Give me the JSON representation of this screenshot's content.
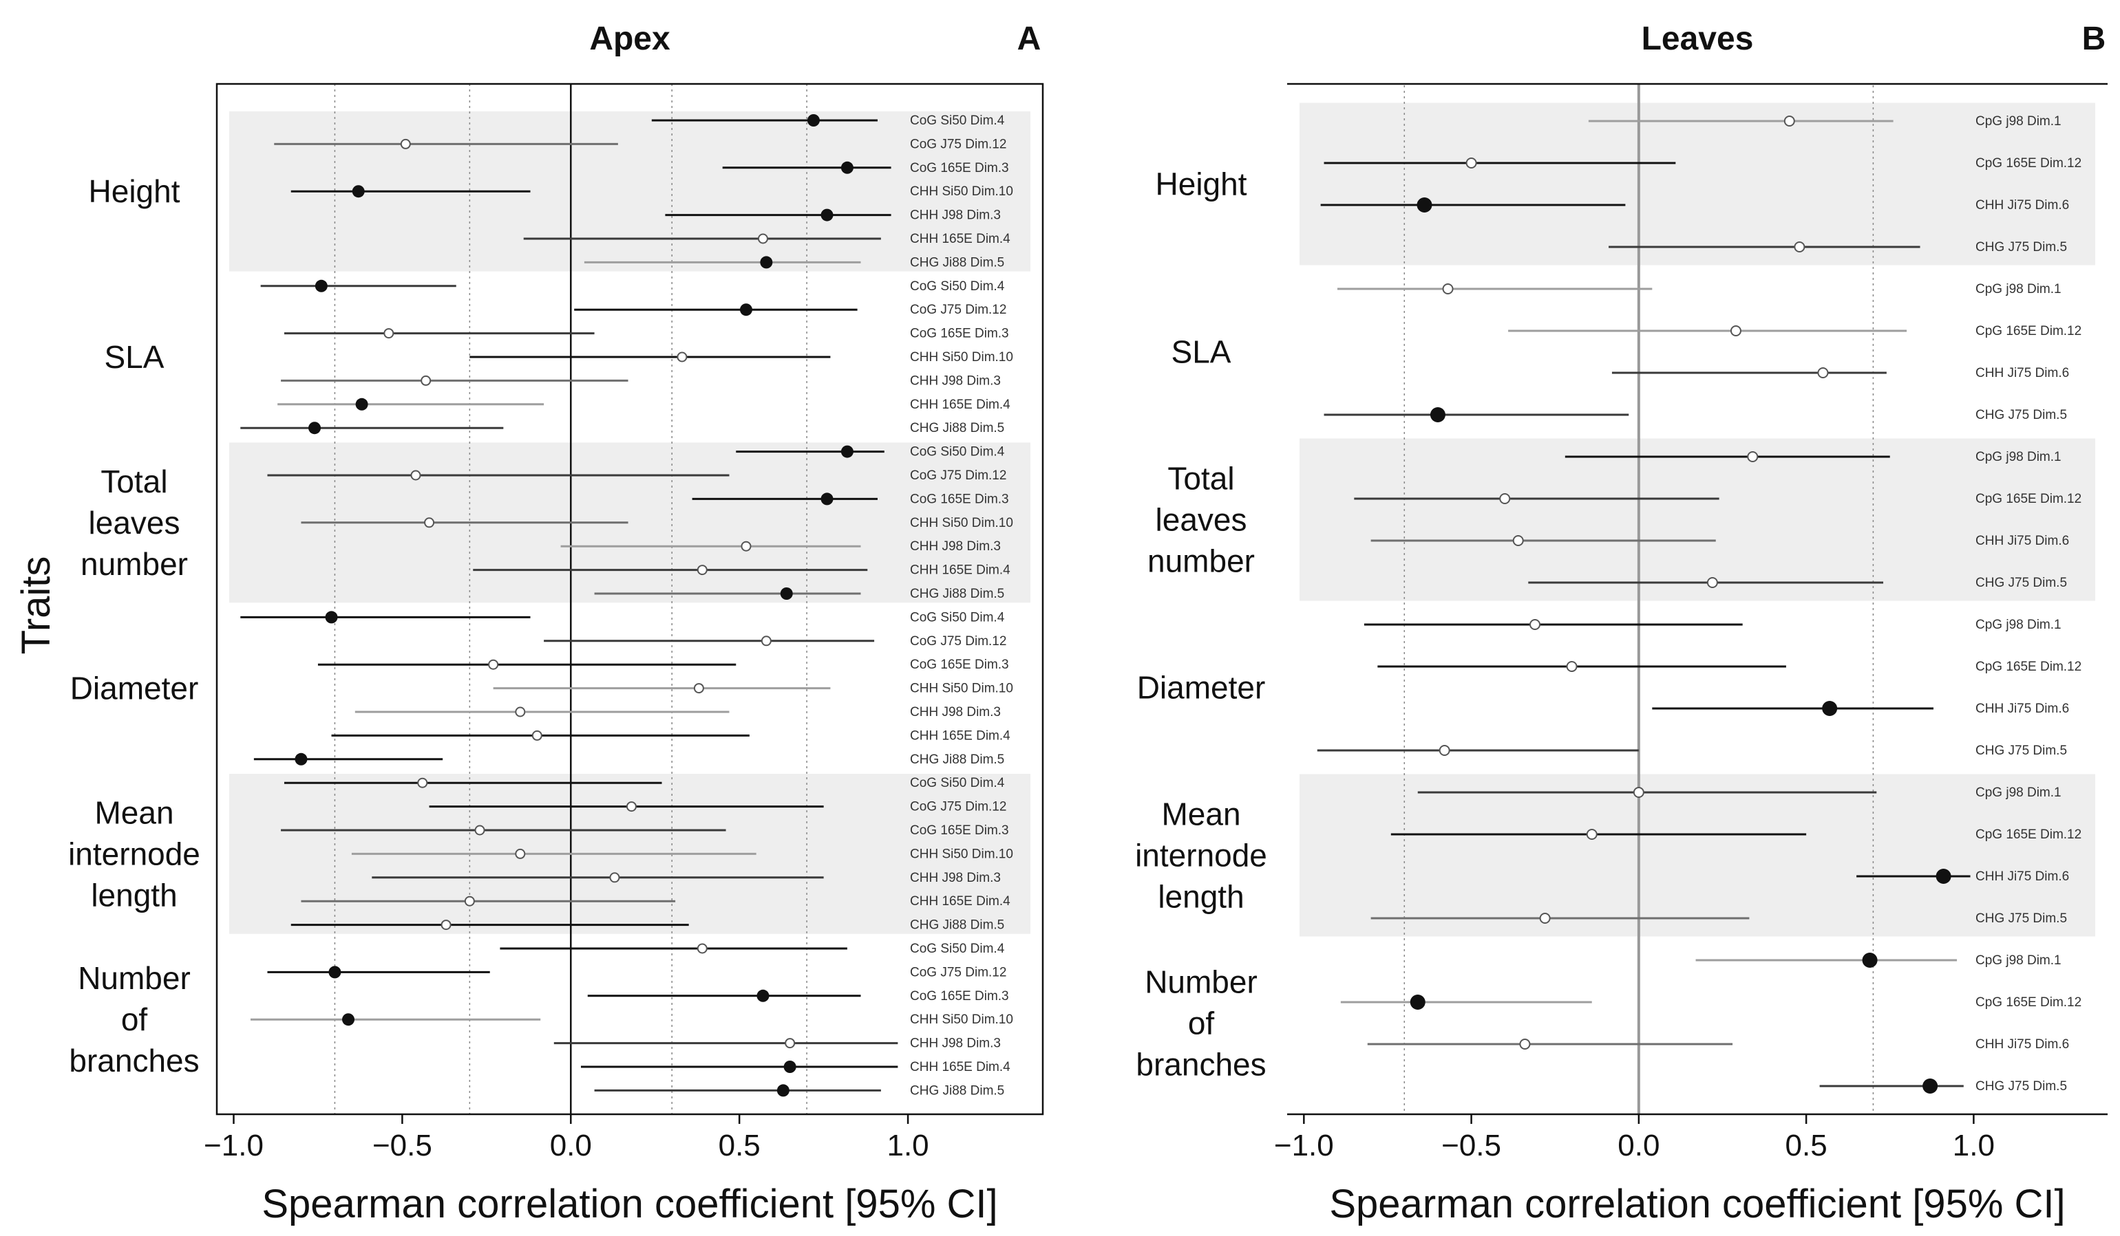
{
  "figure": {
    "y_axis_label": "Traits",
    "colors": {
      "band": "#eeeeee",
      "black": "#111111",
      "dark": "#3a3a3a",
      "mid": "#6f6f6f",
      "light": "#9e9e9e",
      "open_fill": "#ffffff"
    }
  },
  "chart_data": [
    {
      "type": "forest",
      "title": "Apex",
      "panel_letter": "A",
      "xlabel": "Spearman correlation coefficient [95% CI]",
      "xlim": [
        -1.05,
        1.4
      ],
      "xticks": [
        -1.0,
        -0.5,
        0.0,
        0.5,
        1.0
      ],
      "xtick_labels": [
        "−1.0",
        "−0.5",
        "0.0",
        "0.5",
        "1.0"
      ],
      "reference_lines": [
        -0.7,
        -0.3,
        0.3,
        0.7
      ],
      "groups": [
        {
          "name": "Height",
          "label_lines": [
            "Height"
          ],
          "shaded": true,
          "rows": [
            {
              "label": "CoG Si50 Dim.4",
              "est": 0.72,
              "lo": 0.24,
              "hi": 0.91,
              "sig": true,
              "shade": "black"
            },
            {
              "label": "CoG J75 Dim.12",
              "est": -0.49,
              "lo": -0.88,
              "hi": 0.14,
              "sig": false,
              "shade": "mid"
            },
            {
              "label": "CoG 165E Dim.3",
              "est": 0.82,
              "lo": 0.45,
              "hi": 0.95,
              "sig": true,
              "shade": "black"
            },
            {
              "label": "CHH Si50 Dim.10",
              "est": -0.63,
              "lo": -0.83,
              "hi": -0.12,
              "sig": true,
              "shade": "black"
            },
            {
              "label": "CHH J98 Dim.3",
              "est": 0.76,
              "lo": 0.28,
              "hi": 0.95,
              "sig": true,
              "shade": "black"
            },
            {
              "label": "CHH 165E Dim.4",
              "est": 0.57,
              "lo": -0.14,
              "hi": 0.92,
              "sig": false,
              "shade": "dark"
            },
            {
              "label": "CHG Ji88 Dim.5",
              "est": 0.58,
              "lo": 0.04,
              "hi": 0.86,
              "sig": true,
              "shade": "light"
            }
          ]
        },
        {
          "name": "SLA",
          "label_lines": [
            "SLA"
          ],
          "shaded": false,
          "rows": [
            {
              "label": "CoG Si50 Dim.4",
              "est": -0.74,
              "lo": -0.92,
              "hi": -0.34,
              "sig": true,
              "shade": "dark"
            },
            {
              "label": "CoG J75 Dim.12",
              "est": 0.52,
              "lo": 0.01,
              "hi": 0.85,
              "sig": true,
              "shade": "black"
            },
            {
              "label": "CoG 165E Dim.3",
              "est": -0.54,
              "lo": -0.85,
              "hi": 0.07,
              "sig": false,
              "shade": "dark"
            },
            {
              "label": "CHH Si50 Dim.10",
              "est": 0.33,
              "lo": -0.3,
              "hi": 0.77,
              "sig": false,
              "shade": "black"
            },
            {
              "label": "CHH J98 Dim.3",
              "est": -0.43,
              "lo": -0.86,
              "hi": 0.17,
              "sig": false,
              "shade": "mid"
            },
            {
              "label": "CHH 165E Dim.4",
              "est": -0.62,
              "lo": -0.87,
              "hi": -0.08,
              "sig": true,
              "shade": "light"
            },
            {
              "label": "CHG Ji88 Dim.5",
              "est": -0.76,
              "lo": -0.98,
              "hi": -0.2,
              "sig": true,
              "shade": "dark"
            }
          ]
        },
        {
          "name": "Total leaves number",
          "label_lines": [
            "Total",
            "leaves",
            "number"
          ],
          "shaded": true,
          "rows": [
            {
              "label": "CoG Si50 Dim.4",
              "est": 0.82,
              "lo": 0.49,
              "hi": 0.93,
              "sig": true,
              "shade": "black"
            },
            {
              "label": "CoG J75 Dim.12",
              "est": -0.46,
              "lo": -0.9,
              "hi": 0.47,
              "sig": false,
              "shade": "dark"
            },
            {
              "label": "CoG 165E Dim.3",
              "est": 0.76,
              "lo": 0.36,
              "hi": 0.91,
              "sig": true,
              "shade": "black"
            },
            {
              "label": "CHH Si50 Dim.10",
              "est": -0.42,
              "lo": -0.8,
              "hi": 0.17,
              "sig": false,
              "shade": "mid"
            },
            {
              "label": "CHH J98 Dim.3",
              "est": 0.52,
              "lo": -0.03,
              "hi": 0.86,
              "sig": false,
              "shade": "light"
            },
            {
              "label": "CHH 165E Dim.4",
              "est": 0.39,
              "lo": -0.29,
              "hi": 0.88,
              "sig": false,
              "shade": "dark"
            },
            {
              "label": "CHG Ji88 Dim.5",
              "est": 0.64,
              "lo": 0.07,
              "hi": 0.86,
              "sig": true,
              "shade": "mid"
            }
          ]
        },
        {
          "name": "Diameter",
          "label_lines": [
            "Diameter"
          ],
          "shaded": false,
          "rows": [
            {
              "label": "CoG Si50 Dim.4",
              "est": -0.71,
              "lo": -0.98,
              "hi": -0.12,
              "sig": true,
              "shade": "black"
            },
            {
              "label": "CoG J75 Dim.12",
              "est": 0.58,
              "lo": -0.08,
              "hi": 0.9,
              "sig": false,
              "shade": "dark"
            },
            {
              "label": "CoG 165E Dim.3",
              "est": -0.23,
              "lo": -0.75,
              "hi": 0.49,
              "sig": false,
              "shade": "black"
            },
            {
              "label": "CHH Si50 Dim.10",
              "est": 0.38,
              "lo": -0.23,
              "hi": 0.77,
              "sig": false,
              "shade": "light"
            },
            {
              "label": "CHH J98 Dim.3",
              "est": -0.15,
              "lo": -0.64,
              "hi": 0.47,
              "sig": false,
              "shade": "light"
            },
            {
              "label": "CHH 165E Dim.4",
              "est": -0.1,
              "lo": -0.71,
              "hi": 0.53,
              "sig": false,
              "shade": "black"
            },
            {
              "label": "CHG Ji88 Dim.5",
              "est": -0.8,
              "lo": -0.94,
              "hi": -0.38,
              "sig": true,
              "shade": "black"
            }
          ]
        },
        {
          "name": "Mean internode length",
          "label_lines": [
            "Mean",
            "internode",
            "length"
          ],
          "shaded": true,
          "rows": [
            {
              "label": "CoG Si50 Dim.4",
              "est": -0.44,
              "lo": -0.85,
              "hi": 0.27,
              "sig": false,
              "shade": "black"
            },
            {
              "label": "CoG J75 Dim.12",
              "est": 0.18,
              "lo": -0.42,
              "hi": 0.75,
              "sig": false,
              "shade": "black"
            },
            {
              "label": "CoG 165E Dim.3",
              "est": -0.27,
              "lo": -0.86,
              "hi": 0.46,
              "sig": false,
              "shade": "dark"
            },
            {
              "label": "CHH Si50 Dim.10",
              "est": -0.15,
              "lo": -0.65,
              "hi": 0.55,
              "sig": false,
              "shade": "light"
            },
            {
              "label": "CHH J98 Dim.3",
              "est": 0.13,
              "lo": -0.59,
              "hi": 0.75,
              "sig": false,
              "shade": "dark"
            },
            {
              "label": "CHH 165E Dim.4",
              "est": -0.3,
              "lo": -0.8,
              "hi": 0.31,
              "sig": false,
              "shade": "mid"
            },
            {
              "label": "CHG Ji88 Dim.5",
              "est": -0.37,
              "lo": -0.83,
              "hi": 0.35,
              "sig": false,
              "shade": "black"
            }
          ]
        },
        {
          "name": "Number of branches",
          "label_lines": [
            "Number",
            "of",
            "branches"
          ],
          "shaded": false,
          "rows": [
            {
              "label": "CoG Si50 Dim.4",
              "est": 0.39,
              "lo": -0.21,
              "hi": 0.82,
              "sig": false,
              "shade": "black"
            },
            {
              "label": "CoG J75 Dim.12",
              "est": -0.7,
              "lo": -0.9,
              "hi": -0.24,
              "sig": true,
              "shade": "black"
            },
            {
              "label": "CoG 165E Dim.3",
              "est": 0.57,
              "lo": 0.05,
              "hi": 0.86,
              "sig": true,
              "shade": "black"
            },
            {
              "label": "CHH Si50 Dim.10",
              "est": -0.66,
              "lo": -0.95,
              "hi": -0.09,
              "sig": true,
              "shade": "light"
            },
            {
              "label": "CHH J98 Dim.3",
              "est": 0.65,
              "lo": -0.05,
              "hi": 0.97,
              "sig": false,
              "shade": "dark"
            },
            {
              "label": "CHH 165E Dim.4",
              "est": 0.65,
              "lo": 0.03,
              "hi": 0.97,
              "sig": true,
              "shade": "black"
            },
            {
              "label": "CHG Ji88 Dim.5",
              "est": 0.63,
              "lo": 0.07,
              "hi": 0.92,
              "sig": true,
              "shade": "dark"
            }
          ]
        }
      ]
    },
    {
      "type": "forest",
      "title": "Leaves",
      "panel_letter": "B",
      "xlabel": "Spearman correlation coefficient [95% CI]",
      "xlim": [
        -1.05,
        1.4
      ],
      "xticks": [
        -1.0,
        -0.5,
        0.0,
        0.5,
        1.0
      ],
      "xtick_labels": [
        "−1.0",
        "−0.5",
        "0.0",
        "0.5",
        "1.0"
      ],
      "reference_lines": [
        -0.7,
        0.7
      ],
      "groups": [
        {
          "name": "Height",
          "label_lines": [
            "Height"
          ],
          "shaded": true,
          "rows": [
            {
              "label": "CpG j98 Dim.1",
              "est": 0.45,
              "lo": -0.15,
              "hi": 0.76,
              "sig": false,
              "shade": "light"
            },
            {
              "label": "CpG 165E Dim.12",
              "est": -0.5,
              "lo": -0.94,
              "hi": 0.11,
              "sig": false,
              "shade": "black"
            },
            {
              "label": "CHH Ji75 Dim.6",
              "est": -0.64,
              "lo": -0.95,
              "hi": -0.04,
              "sig": true,
              "shade": "black"
            },
            {
              "label": "CHG J75 Dim.5",
              "est": 0.48,
              "lo": -0.09,
              "hi": 0.84,
              "sig": false,
              "shade": "dark"
            }
          ]
        },
        {
          "name": "SLA",
          "label_lines": [
            "SLA"
          ],
          "shaded": false,
          "rows": [
            {
              "label": "CpG j98 Dim.1",
              "est": -0.57,
              "lo": -0.9,
              "hi": 0.04,
              "sig": false,
              "shade": "light"
            },
            {
              "label": "CpG 165E Dim.12",
              "est": 0.29,
              "lo": -0.39,
              "hi": 0.8,
              "sig": false,
              "shade": "light"
            },
            {
              "label": "CHH Ji75 Dim.6",
              "est": 0.55,
              "lo": -0.08,
              "hi": 0.74,
              "sig": false,
              "shade": "dark"
            },
            {
              "label": "CHG J75 Dim.5",
              "est": -0.6,
              "lo": -0.94,
              "hi": -0.03,
              "sig": true,
              "shade": "dark"
            }
          ]
        },
        {
          "name": "Total leaves number",
          "label_lines": [
            "Total",
            "leaves",
            "number"
          ],
          "shaded": true,
          "rows": [
            {
              "label": "CpG j98 Dim.1",
              "est": 0.34,
              "lo": -0.22,
              "hi": 0.75,
              "sig": false,
              "shade": "black"
            },
            {
              "label": "CpG 165E Dim.12",
              "est": -0.4,
              "lo": -0.85,
              "hi": 0.24,
              "sig": false,
              "shade": "dark"
            },
            {
              "label": "CHH Ji75 Dim.6",
              "est": -0.36,
              "lo": -0.8,
              "hi": 0.23,
              "sig": false,
              "shade": "mid"
            },
            {
              "label": "CHG J75 Dim.5",
              "est": 0.22,
              "lo": -0.33,
              "hi": 0.73,
              "sig": false,
              "shade": "dark"
            }
          ]
        },
        {
          "name": "Diameter",
          "label_lines": [
            "Diameter"
          ],
          "shaded": false,
          "rows": [
            {
              "label": "CpG j98 Dim.1",
              "est": -0.31,
              "lo": -0.82,
              "hi": 0.31,
              "sig": false,
              "shade": "black"
            },
            {
              "label": "CpG 165E Dim.12",
              "est": -0.2,
              "lo": -0.78,
              "hi": 0.44,
              "sig": false,
              "shade": "black"
            },
            {
              "label": "CHH Ji75 Dim.6",
              "est": 0.57,
              "lo": 0.04,
              "hi": 0.88,
              "sig": true,
              "shade": "black"
            },
            {
              "label": "CHG J75 Dim.5",
              "est": -0.58,
              "lo": -0.96,
              "hi": 0.0,
              "sig": false,
              "shade": "dark"
            }
          ]
        },
        {
          "name": "Mean internode length",
          "label_lines": [
            "Mean",
            "internode",
            "length"
          ],
          "shaded": true,
          "rows": [
            {
              "label": "CpG j98 Dim.1",
              "est": 0.0,
              "lo": -0.66,
              "hi": 0.71,
              "sig": false,
              "shade": "dark"
            },
            {
              "label": "CpG 165E Dim.12",
              "est": -0.14,
              "lo": -0.74,
              "hi": 0.5,
              "sig": false,
              "shade": "black"
            },
            {
              "label": "CHH Ji75 Dim.6",
              "est": 0.91,
              "lo": 0.65,
              "hi": 0.99,
              "sig": true,
              "shade": "black"
            },
            {
              "label": "CHG J75 Dim.5",
              "est": -0.28,
              "lo": -0.8,
              "hi": 0.33,
              "sig": false,
              "shade": "mid"
            }
          ]
        },
        {
          "name": "Number of branches",
          "label_lines": [
            "Number",
            "of",
            "branches"
          ],
          "shaded": false,
          "rows": [
            {
              "label": "CpG j98 Dim.1",
              "est": 0.69,
              "lo": 0.17,
              "hi": 0.95,
              "sig": true,
              "shade": "light"
            },
            {
              "label": "CpG 165E Dim.12",
              "est": -0.66,
              "lo": -0.89,
              "hi": -0.14,
              "sig": true,
              "shade": "light"
            },
            {
              "label": "CHH Ji75 Dim.6",
              "est": -0.34,
              "lo": -0.81,
              "hi": 0.28,
              "sig": false,
              "shade": "mid"
            },
            {
              "label": "CHG J75 Dim.5",
              "est": 0.87,
              "lo": 0.54,
              "hi": 0.97,
              "sig": true,
              "shade": "dark"
            }
          ]
        }
      ]
    }
  ]
}
